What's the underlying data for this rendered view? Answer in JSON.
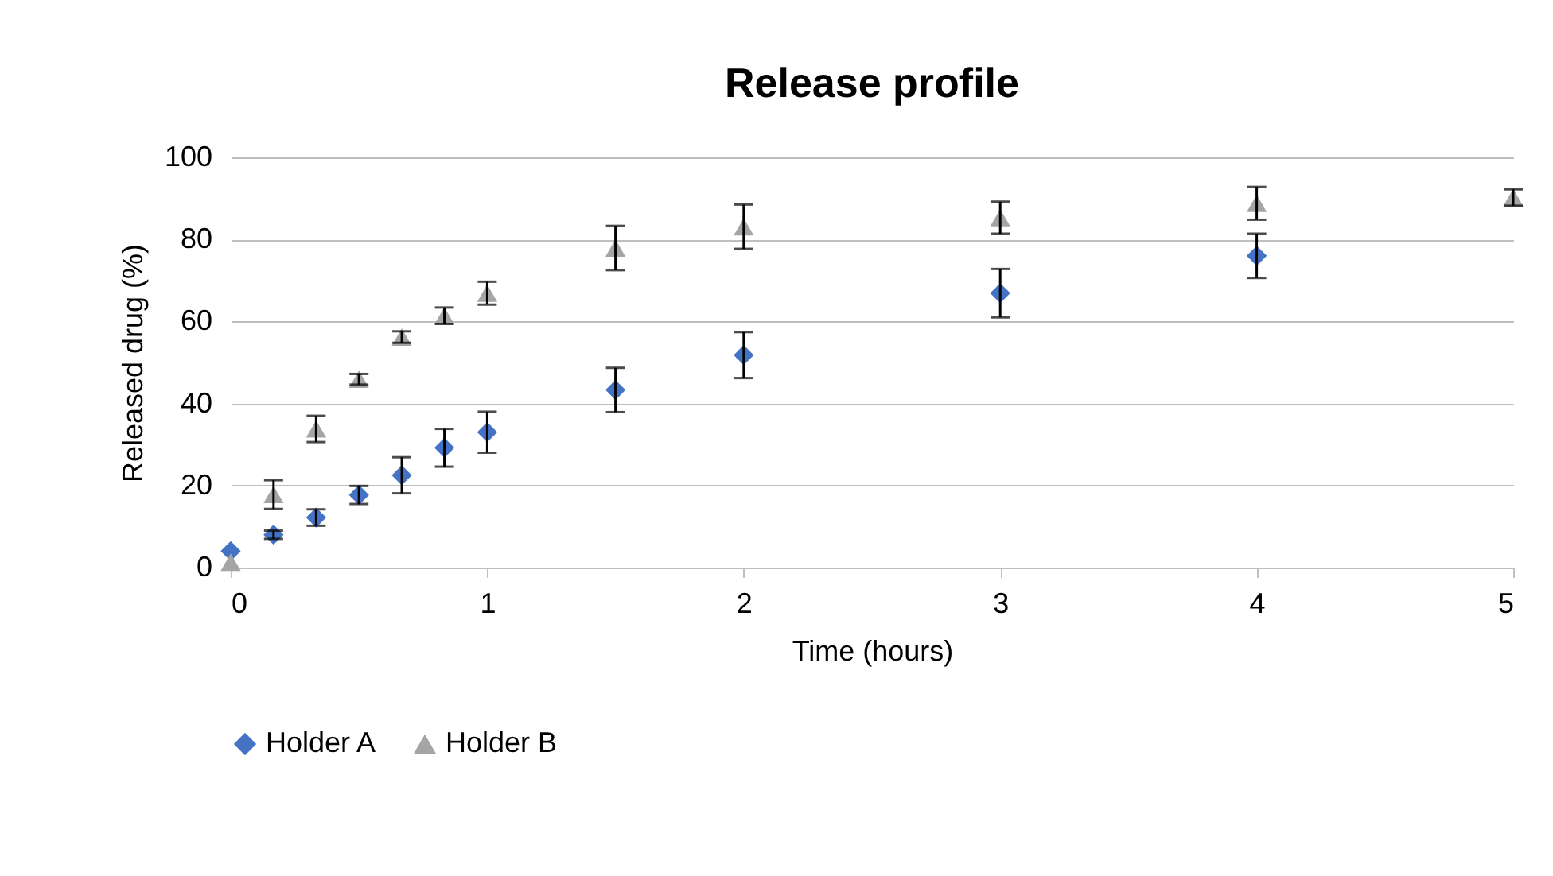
{
  "chart_data": {
    "type": "scatter",
    "title": "Release profile",
    "xlabel": "Time (hours)",
    "ylabel": "Released drug (%)",
    "x": [
      0,
      0.167,
      0.333,
      0.5,
      0.667,
      0.833,
      1,
      1.5,
      2,
      3,
      4,
      5
    ],
    "series": [
      {
        "name": "Holder A",
        "color": "#4472c4",
        "marker": "diamond",
        "values": [
          4,
          8,
          12.2,
          17.7,
          22.5,
          29.2,
          33,
          43.3,
          51.8,
          66.9,
          76,
          null
        ],
        "errors": [
          null,
          1,
          2,
          2.2,
          4.4,
          4.6,
          5,
          5.4,
          5.6,
          5.9,
          5.4,
          null
        ]
      },
      {
        "name": "Holder B",
        "color": "#a5a5a5",
        "marker": "triangle",
        "values": [
          1.3,
          17.8,
          33.8,
          45.9,
          56.2,
          61.4,
          66.9,
          77.9,
          83.1,
          85.3,
          88.8,
          90.2
        ],
        "errors": [
          null,
          3.5,
          3.2,
          1.3,
          1.4,
          2,
          2.8,
          5.4,
          5.4,
          3.9,
          4,
          2
        ]
      }
    ],
    "xlim": [
      0,
      5
    ],
    "xticks": [
      0,
      1,
      2,
      3,
      4,
      5
    ],
    "ylim": [
      0,
      100
    ],
    "yticks": [
      0,
      20,
      40,
      60,
      80,
      100
    ],
    "grid": "y",
    "legend": "bottom"
  }
}
